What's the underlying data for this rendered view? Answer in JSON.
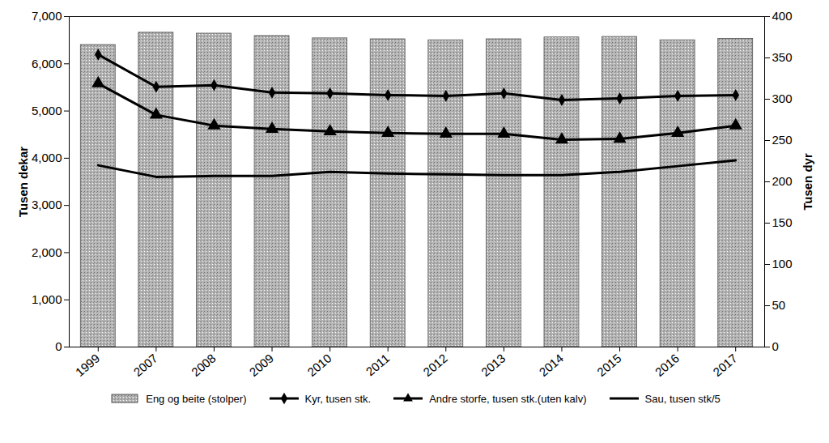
{
  "chart_data": {
    "type": "combo",
    "categories": [
      "1999",
      "2007",
      "2008",
      "2009",
      "2010",
      "2011",
      "2012",
      "2013",
      "2014",
      "2015",
      "2016",
      "2017"
    ],
    "series": [
      {
        "name": "Eng og beite (stolper)",
        "type": "bar",
        "color": "#b4b4b4",
        "values": [
          6400,
          6660,
          6640,
          6590,
          6540,
          6520,
          6500,
          6520,
          6560,
          6570,
          6500,
          6530
        ]
      },
      {
        "name": "Kyr, tusen stk.",
        "type": "line",
        "color": "#000000",
        "marker": "diamond",
        "axis": "y2",
        "values": [
          354,
          315,
          317,
          308,
          307,
          305,
          304,
          307,
          299,
          301,
          304,
          305
        ]
      },
      {
        "name": "Andre storfe, tusen stk.(uten kalv)",
        "type": "line",
        "color": "#000000",
        "marker": "triangle",
        "axis": "y2",
        "values": [
          319,
          281,
          268,
          264,
          261,
          259,
          258,
          258,
          251,
          252,
          259,
          268
        ]
      },
      {
        "name": "Sau, tusen stk/5",
        "type": "line",
        "color": "#000000",
        "marker": "none",
        "axis": "y2",
        "values": [
          220,
          206,
          207,
          207,
          212,
          210,
          209,
          208,
          208,
          212,
          219,
          226
        ]
      }
    ],
    "y_label": "Tusen dekar",
    "y2_label": "Tusen dyr",
    "ylim": [
      0,
      7000
    ],
    "yticks": [
      0,
      1000,
      2000,
      3000,
      4000,
      5000,
      6000,
      7000
    ],
    "y2lim": [
      0,
      400
    ],
    "y2ticks": [
      0,
      50,
      100,
      150,
      200,
      250,
      300,
      350,
      400
    ],
    "legend": "bottom"
  }
}
